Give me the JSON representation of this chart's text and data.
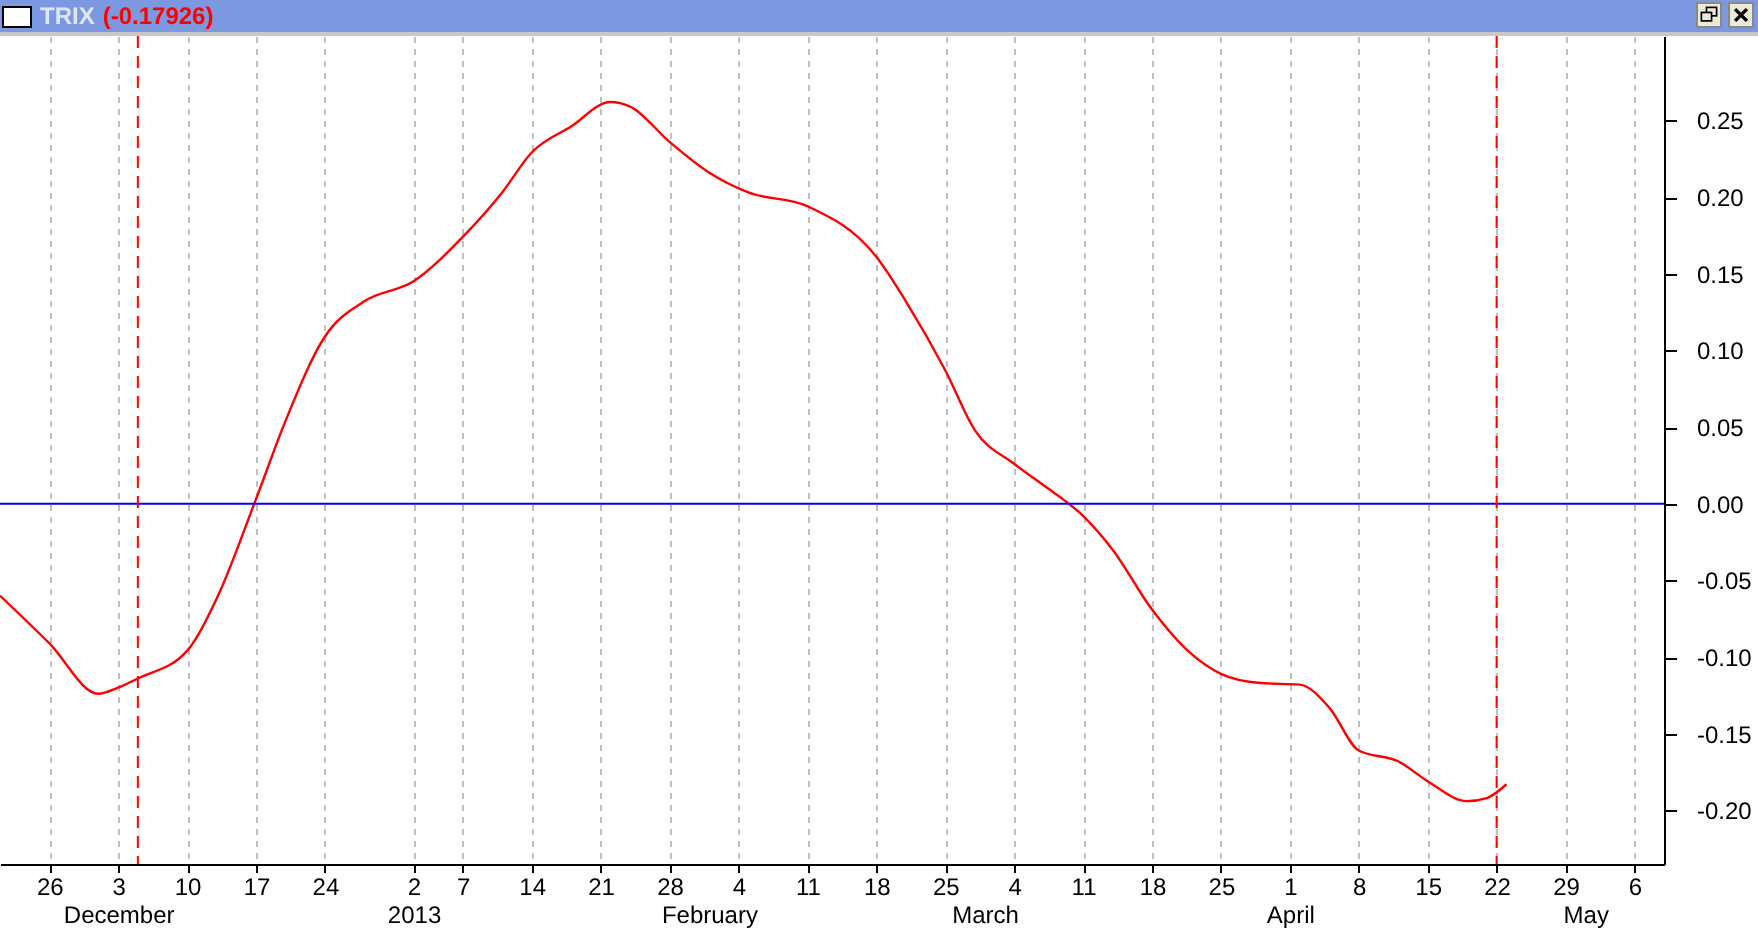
{
  "chart_data": {
    "type": "line",
    "title": "TRIX",
    "subtitle": "(-0.17926)",
    "x": [
      "2012-11-21",
      "2012-11-26",
      "2012-12-01",
      "2012-12-03",
      "2012-12-05",
      "2012-12-10",
      "2012-12-13",
      "2012-12-17",
      "2012-12-20",
      "2012-12-24",
      "2012-12-28",
      "2013-01-02",
      "2013-01-07",
      "2013-01-11",
      "2013-01-14",
      "2013-01-18",
      "2013-01-22",
      "2013-01-24",
      "2013-01-28",
      "2013-02-01",
      "2013-02-05",
      "2013-02-11",
      "2013-02-18",
      "2013-02-21",
      "2013-02-25",
      "2013-02-28",
      "2013-03-04",
      "2013-03-07",
      "2013-03-11",
      "2013-03-14",
      "2013-03-18",
      "2013-03-22",
      "2013-03-25",
      "2013-03-29",
      "2013-04-02",
      "2013-04-05",
      "2013-04-08",
      "2013-04-12",
      "2013-04-15",
      "2013-04-19",
      "2013-04-21",
      "2013-04-23"
    ],
    "series": [
      {
        "color": "#ff0000",
        "values": [
          -0.06,
          -0.091,
          -0.124,
          -0.12,
          -0.114,
          -0.096,
          -0.062,
          0.003,
          0.054,
          0.109,
          0.132,
          0.145,
          0.174,
          0.203,
          0.229,
          0.246,
          0.262,
          0.259,
          0.236,
          0.216,
          0.203,
          0.194,
          0.161,
          0.132,
          0.087,
          0.048,
          0.026,
          0.012,
          -0.008,
          -0.03,
          -0.069,
          -0.098,
          -0.111,
          -0.117,
          -0.118,
          -0.133,
          -0.161,
          -0.168,
          -0.181,
          -0.194,
          -0.192,
          -0.183
        ]
      }
    ],
    "xlim": [
      "2012-11-21",
      "2013-05-09"
    ],
    "xticks": [
      {
        "value": "2012-11-26",
        "label": "26"
      },
      {
        "value": "2012-12-03",
        "label": "3"
      },
      {
        "value": "2012-12-10",
        "label": "10"
      },
      {
        "value": "2012-12-17",
        "label": "17"
      },
      {
        "value": "2012-12-24",
        "label": "24"
      },
      {
        "value": "2013-01-02",
        "label": "2"
      },
      {
        "value": "2013-01-07",
        "label": "7"
      },
      {
        "value": "2013-01-14",
        "label": "14"
      },
      {
        "value": "2013-01-21",
        "label": "21"
      },
      {
        "value": "2013-01-28",
        "label": "28"
      },
      {
        "value": "2013-02-04",
        "label": "4"
      },
      {
        "value": "2013-02-11",
        "label": "11"
      },
      {
        "value": "2013-02-18",
        "label": "18"
      },
      {
        "value": "2013-02-25",
        "label": "25"
      },
      {
        "value": "2013-03-04",
        "label": "4"
      },
      {
        "value": "2013-03-11",
        "label": "11"
      },
      {
        "value": "2013-03-18",
        "label": "18"
      },
      {
        "value": "2013-03-25",
        "label": "25"
      },
      {
        "value": "2013-04-01",
        "label": "1"
      },
      {
        "value": "2013-04-08",
        "label": "8"
      },
      {
        "value": "2013-04-15",
        "label": "15"
      },
      {
        "value": "2013-04-22",
        "label": "22"
      },
      {
        "value": "2013-04-29",
        "label": "29"
      },
      {
        "value": "2013-05-06",
        "label": "6"
      }
    ],
    "x2lim": [
      "2012-11-21",
      "2013-05-09"
    ],
    "x2ticks": [
      {
        "value": "2012-12-03",
        "label": "December"
      },
      {
        "value": "2013-01-02",
        "label": "2013"
      },
      {
        "value": "2013-02-01",
        "label": "February"
      },
      {
        "value": "2013-03-01",
        "label": "March"
      },
      {
        "value": "2013-04-01",
        "label": "April"
      },
      {
        "value": "2013-05-01",
        "label": "May"
      }
    ],
    "ylim": [
      -0.235,
      0.305
    ],
    "yticks": [
      {
        "value": -0.2,
        "label": "-0.20"
      },
      {
        "value": -0.15,
        "label": "-0.15"
      },
      {
        "value": -0.1,
        "label": "-0.10"
      },
      {
        "value": -0.05,
        "label": "-0.05"
      },
      {
        "value": 0,
        "label": "0.00"
      },
      {
        "value": 0.05,
        "label": "0.05"
      },
      {
        "value": 0.1,
        "label": "0.10"
      },
      {
        "value": 0.15,
        "label": "0.15"
      },
      {
        "value": 0.2,
        "label": "0.20"
      },
      {
        "value": 0.25,
        "label": "0.25"
      }
    ],
    "grid": "x",
    "line_style": "solid",
    "ref_lines": [
      {
        "axis": "y",
        "value": 0,
        "color": "#0000ff",
        "line_style": "solid"
      },
      {
        "axis": "x",
        "value": "2012-12-05",
        "color": "#ff0000",
        "line_style": "dashed"
      },
      {
        "axis": "x",
        "value": "2013-04-22",
        "color": "#ff0000",
        "line_style": "dashed"
      }
    ]
  }
}
